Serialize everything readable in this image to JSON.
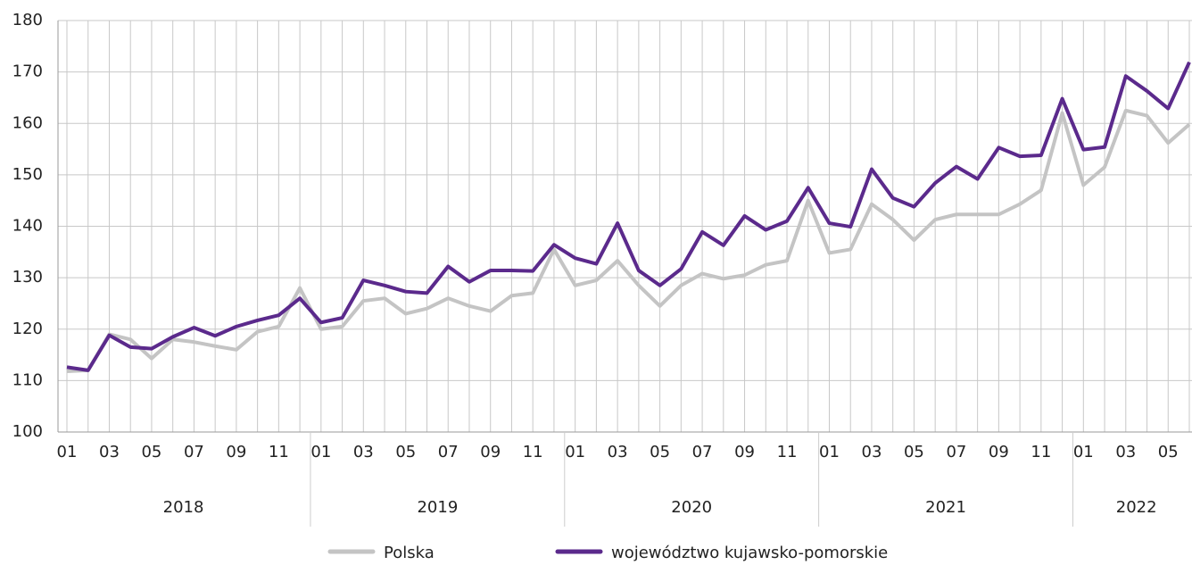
{
  "chart_data": {
    "type": "line",
    "categories": [
      "01",
      null,
      "03",
      null,
      "05",
      null,
      "07",
      null,
      "09",
      null,
      "11",
      null,
      "01",
      null,
      "03",
      null,
      "05",
      null,
      "07",
      null,
      "09",
      null,
      "11",
      null,
      "01",
      null,
      "03",
      null,
      "05",
      null,
      "07",
      null,
      "09",
      null,
      "11",
      null,
      "01",
      null,
      "03",
      null,
      "05",
      null,
      "07",
      null,
      "09",
      null,
      "11",
      null,
      "01",
      null,
      "03",
      null,
      "05",
      null
    ],
    "years": [
      "2018",
      "2019",
      "2020",
      "2021",
      "2022"
    ],
    "series": [
      {
        "name": "Polska",
        "color": "#c4c4c4",
        "values": [
          111.8,
          112,
          119,
          118,
          114.3,
          118,
          117.5,
          116.7,
          116,
          119.5,
          120.5,
          128,
          120,
          120.5,
          125.5,
          126,
          123,
          124,
          126,
          124.5,
          123.5,
          126.5,
          127,
          135.5,
          128.5,
          129.5,
          133.3,
          128.5,
          124.5,
          128.5,
          130.8,
          129.8,
          130.5,
          132.5,
          133.3,
          145,
          134.8,
          135.5,
          144.3,
          141.3,
          137.3,
          141.3,
          142.3,
          142.3,
          142.3,
          144.3,
          147,
          162,
          148,
          151.5,
          162.5,
          161.5,
          156.2,
          159.8
        ]
      },
      {
        "name": "województwo kujawsko-pomorskie",
        "color": "#5b2a8c",
        "values": [
          112.6,
          112,
          118.8,
          116.5,
          116.2,
          118.5,
          120.3,
          118.7,
          120.5,
          121.7,
          122.7,
          126,
          121.3,
          122.2,
          129.5,
          128.5,
          127.3,
          127,
          132.2,
          129.2,
          131.4,
          131.4,
          131.3,
          136.4,
          133.8,
          132.7,
          140.6,
          131.4,
          128.5,
          131.7,
          138.9,
          136.3,
          142,
          139.3,
          141,
          147.5,
          140.6,
          139.9,
          151.1,
          145.5,
          143.8,
          148.4,
          151.6,
          149.2,
          155.3,
          153.6,
          153.8,
          164.8,
          154.9,
          155.4,
          169.2,
          166.3,
          162.9,
          171.9
        ]
      }
    ],
    "ylim": [
      100,
      180
    ],
    "yticks": [
      100,
      110,
      120,
      130,
      140,
      150,
      160,
      170,
      180
    ],
    "grid": true
  }
}
